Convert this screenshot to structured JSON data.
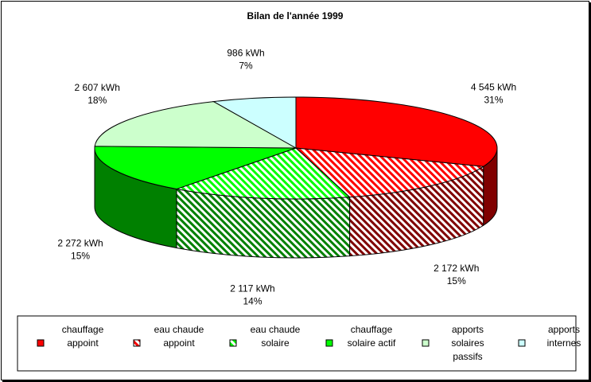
{
  "chart_data": {
    "type": "pie",
    "title": "Bilan de l'année 1999",
    "slices": [
      {
        "legend": [
          "chauffage",
          "appoint"
        ],
        "value_label": "4 545 kWh",
        "percent_label": "31%",
        "value": 4545,
        "color": "#ff0000",
        "pattern": "solid"
      },
      {
        "legend": [
          "eau chaude",
          "appoint"
        ],
        "value_label": "2 172 kWh",
        "percent_label": "15%",
        "value": 2172,
        "color": "#ff0000",
        "pattern": "hatch"
      },
      {
        "legend": [
          "eau chaude",
          "solaire"
        ],
        "value_label": "2 117 kWh",
        "percent_label": "14%",
        "value": 2117,
        "color": "#00ff00",
        "pattern": "hatch"
      },
      {
        "legend": [
          "chauffage",
          "solaire actif"
        ],
        "value_label": "2 272 kWh",
        "percent_label": "15%",
        "value": 2272,
        "color": "#00ff00",
        "pattern": "solid"
      },
      {
        "legend": [
          "apports",
          "solaires",
          "passifs"
        ],
        "value_label": "2 607 kWh",
        "percent_label": "18%",
        "value": 2607,
        "color": "#ccffcc",
        "pattern": "solid"
      },
      {
        "legend": [
          "apports",
          "internes"
        ],
        "value_label": "986 kWh",
        "percent_label": "7%",
        "value": 986,
        "color": "#ccffff",
        "pattern": "solid"
      }
    ],
    "legend_position": "bottom"
  }
}
